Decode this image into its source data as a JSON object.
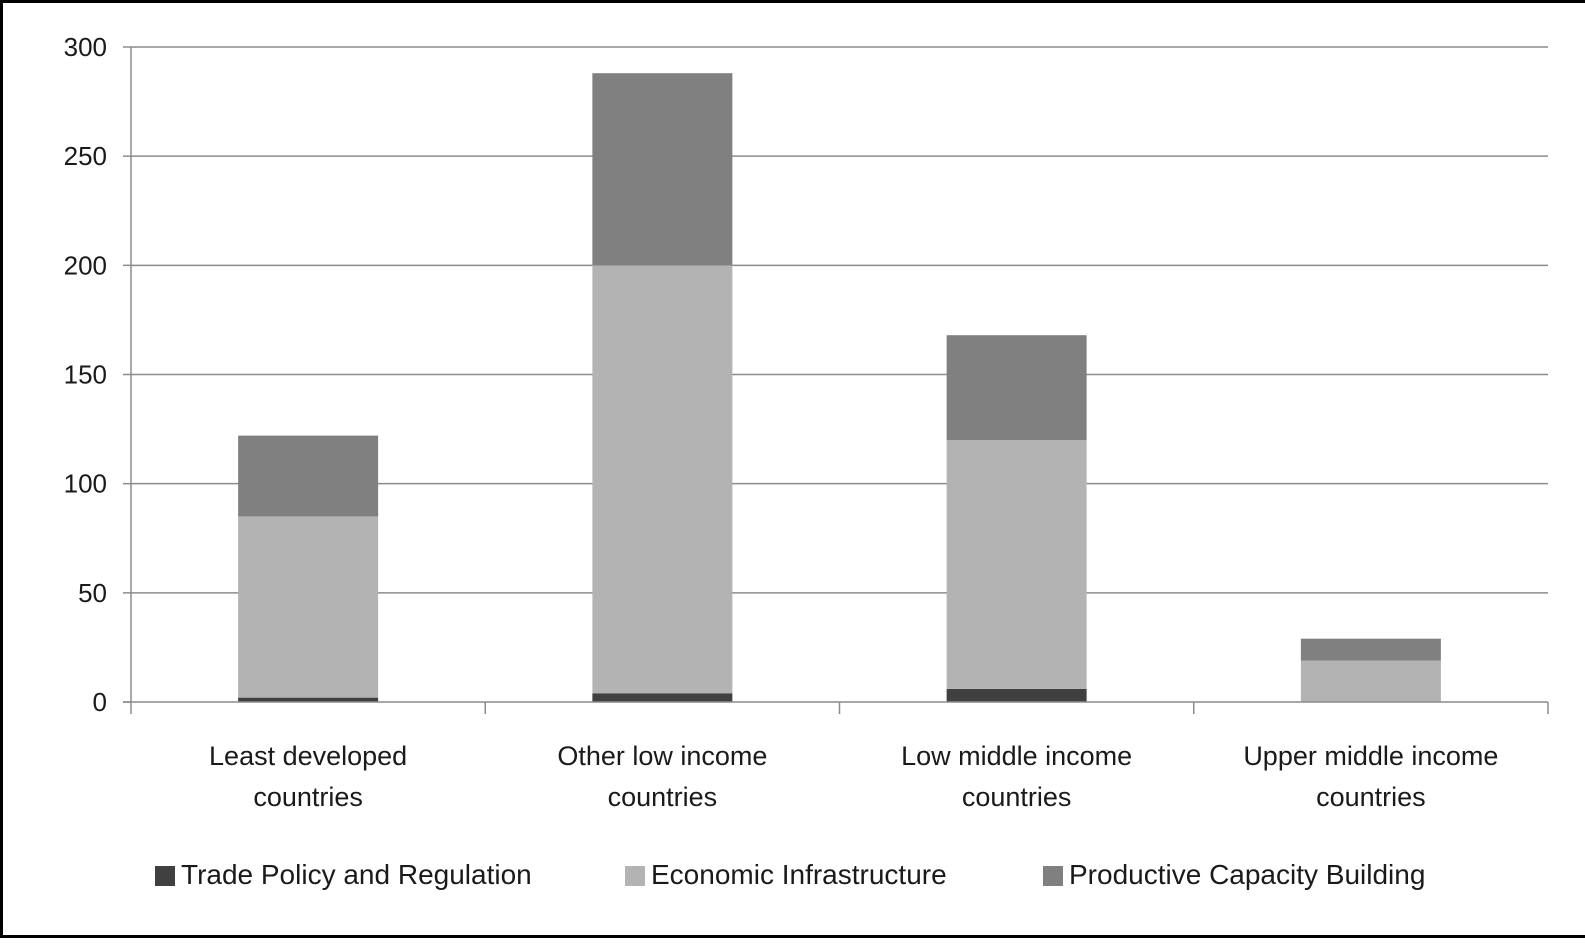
{
  "chart_data": {
    "type": "bar",
    "stacked": true,
    "categories": [
      [
        "Least developed",
        "countries"
      ],
      [
        "Other low income",
        "countries"
      ],
      [
        "Low middle income",
        "countries"
      ],
      [
        "Upper middle income",
        "countries"
      ]
    ],
    "series": [
      {
        "name": "Trade Policy and Regulation",
        "color": "#404040",
        "values": [
          2,
          4,
          6,
          0
        ]
      },
      {
        "name": "Economic Infrastructure",
        "color": "#b3b3b3",
        "values": [
          83,
          196,
          114,
          19
        ]
      },
      {
        "name": "Productive Capacity Building",
        "color": "#808080",
        "values": [
          37,
          88,
          48,
          10
        ]
      }
    ],
    "ylim": [
      0,
      300
    ],
    "yticks": [
      0,
      50,
      100,
      150,
      200,
      250,
      300
    ],
    "grid": true,
    "legend": "bottom"
  }
}
